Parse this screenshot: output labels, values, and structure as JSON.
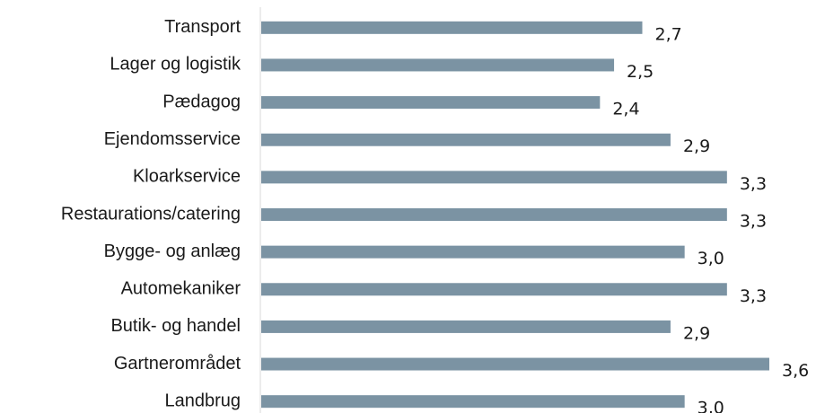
{
  "chart_data": {
    "type": "barh",
    "categories": [
      "Transport",
      "Lager og logistik",
      "Pædagog",
      "Ejendomsservice",
      "Kloarkservice",
      "Restaurations/catering",
      "Bygge- og anlæg",
      "Automekaniker",
      "Butik- og handel",
      "Gartnerområdet",
      "Landbrug"
    ],
    "values": [
      2.7,
      2.5,
      2.4,
      2.9,
      3.3,
      3.3,
      3.0,
      3.3,
      2.9,
      3.6,
      3.0
    ],
    "value_labels": [
      "2,7",
      "2,5",
      "2,4",
      "2,9",
      "3,3",
      "3,3",
      "3,0",
      "3,3",
      "2,9",
      "3,6",
      "3,0"
    ],
    "color": "#7b93a3",
    "xlim": [
      0,
      3.6
    ]
  }
}
